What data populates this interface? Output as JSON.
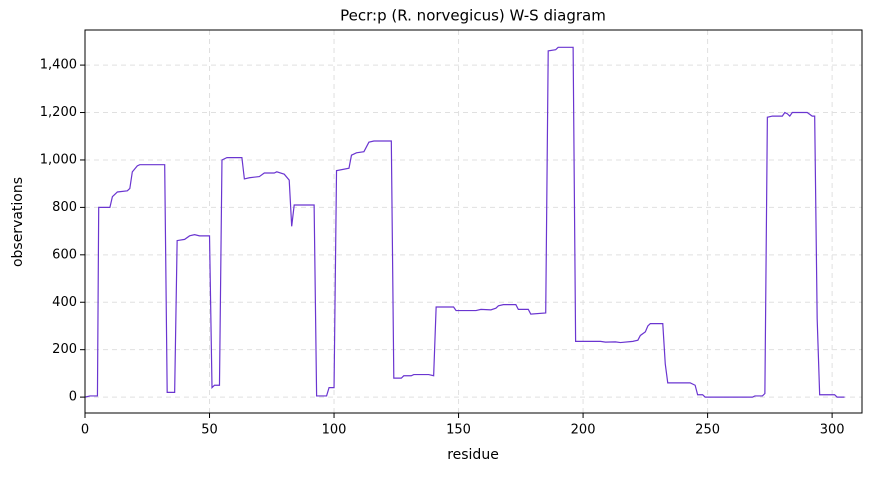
{
  "chart_data": {
    "type": "line",
    "title": "Pecr:p (R. norvegicus) W-S diagram",
    "x_label": "residue",
    "y_label": "observations",
    "color": "#6a35d0",
    "grid": true,
    "x": [
      0,
      2,
      5,
      5.5,
      10,
      11,
      13,
      17,
      18,
      19,
      21,
      22,
      32,
      33,
      36,
      37,
      40,
      42,
      44,
      46,
      50,
      51,
      52,
      54,
      55,
      57,
      63,
      64,
      66,
      70,
      72,
      76,
      77,
      80,
      82,
      83,
      84,
      92,
      93,
      97,
      98,
      100,
      101,
      106,
      107,
      109,
      112,
      114,
      116,
      123,
      124,
      127,
      128,
      131,
      132,
      138,
      140,
      141,
      148,
      149,
      157,
      159,
      163,
      165,
      166,
      168,
      173,
      174,
      178,
      179,
      185,
      186,
      189,
      190,
      196,
      197,
      207,
      209,
      213,
      215,
      220,
      222,
      223,
      225,
      226,
      227,
      232,
      233,
      234,
      243,
      245,
      246,
      248,
      249,
      268,
      269,
      272,
      273,
      274,
      276,
      280,
      281,
      282,
      283,
      284,
      290,
      292,
      293,
      294,
      295,
      301,
      302,
      305
    ],
    "values": [
      0,
      5,
      5,
      800,
      800,
      845,
      865,
      870,
      880,
      950,
      975,
      980,
      980,
      20,
      20,
      660,
      665,
      680,
      685,
      680,
      680,
      40,
      50,
      50,
      1000,
      1010,
      1010,
      920,
      925,
      930,
      945,
      945,
      950,
      940,
      915,
      720,
      810,
      810,
      5,
      5,
      40,
      40,
      955,
      965,
      1020,
      1030,
      1035,
      1075,
      1080,
      1080,
      80,
      80,
      90,
      90,
      95,
      95,
      90,
      380,
      380,
      365,
      365,
      370,
      368,
      375,
      385,
      390,
      390,
      370,
      370,
      350,
      355,
      1460,
      1465,
      1475,
      1475,
      235,
      235,
      232,
      233,
      230,
      235,
      240,
      260,
      275,
      300,
      310,
      310,
      140,
      60,
      60,
      50,
      10,
      10,
      0,
      0,
      5,
      5,
      15,
      1180,
      1185,
      1185,
      1200,
      1195,
      1185,
      1200,
      1200,
      1185,
      1185,
      330,
      10,
      10,
      0,
      0
    ],
    "xlim": [
      0,
      312
    ],
    "ylim": [
      -67,
      1548
    ],
    "xticks": [
      0,
      50,
      100,
      150,
      200,
      250,
      300
    ],
    "yticks": [
      0,
      200,
      400,
      600,
      800,
      {
        "value": 1000,
        "label": "1,000"
      },
      {
        "value": 1200,
        "label": "1,200"
      },
      {
        "value": 1400,
        "label": "1,400"
      }
    ]
  }
}
